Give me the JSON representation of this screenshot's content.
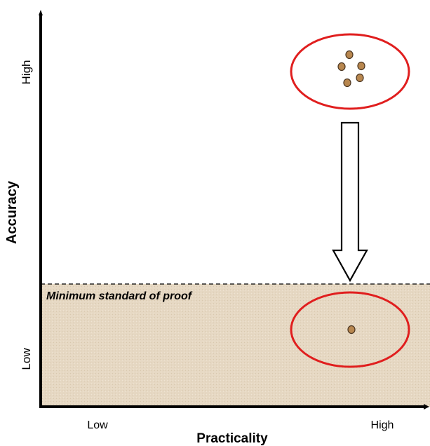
{
  "y_axis": {
    "title": "Accuracy",
    "high_label": "High",
    "low_label": "Low"
  },
  "x_axis": {
    "title": "Practicality",
    "low_label": "Low",
    "high_label": "High"
  },
  "zone": {
    "label": "Minimum standard of proof",
    "fill": "#e6d8c3",
    "line_style": "dashed"
  },
  "clusters": [
    {
      "position": "high accuracy, high practicality",
      "dot_count": 5
    },
    {
      "position": "low accuracy, high practicality",
      "dot_count": 1
    }
  ],
  "colors": {
    "ellipse": "#e01e1e",
    "dot_fill": "#b8874f",
    "dot_stroke": "#4a3520",
    "arrow_fill": "#ffffff",
    "arrow_stroke": "#000000"
  },
  "arrow": {
    "direction": "down"
  }
}
